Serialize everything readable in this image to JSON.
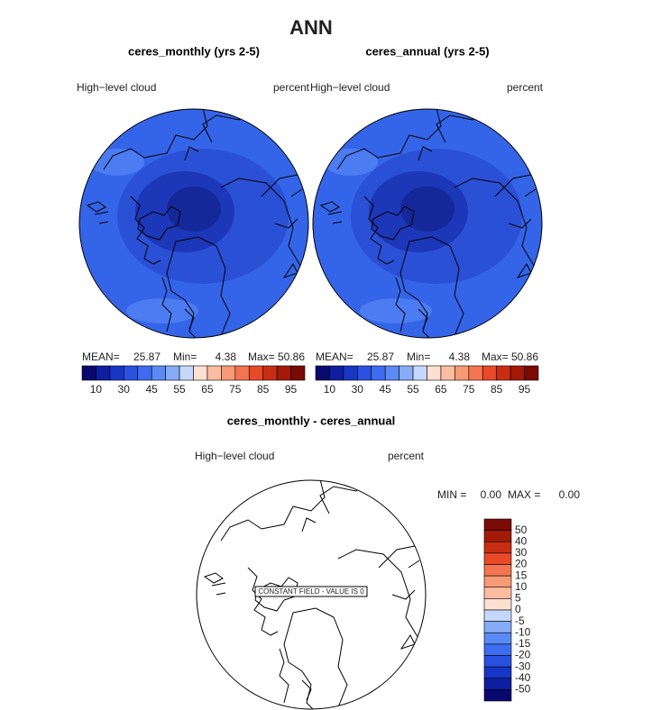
{
  "title": "ANN",
  "panels": [
    {
      "subtitle": "ceres_monthly (yrs 2-5)",
      "variable": "High−level cloud",
      "units": "percent",
      "stats": [
        {
          "label": "MEAN=",
          "value": "25.87"
        },
        {
          "label": "Min=",
          "value": "4.38"
        },
        {
          "label": "Max=",
          "value": "50.86"
        }
      ],
      "colorbar": [
        "10",
        "30",
        "45",
        "55",
        "65",
        "75",
        "85",
        "95"
      ]
    },
    {
      "subtitle": "ceres_annual (yrs 2-5)",
      "variable": "High−level cloud",
      "units": "percent",
      "stats": [
        {
          "label": "MEAN=",
          "value": "25.87"
        },
        {
          "label": "Min=",
          "value": "4.38"
        },
        {
          "label": "Max=",
          "value": "50.86"
        }
      ],
      "colorbar": [
        "10",
        "30",
        "45",
        "55",
        "65",
        "75",
        "85",
        "95"
      ]
    }
  ],
  "difference": {
    "subtitle": "ceres_monthly - ceres_annual",
    "variable": "High−level cloud",
    "units": "percent",
    "note": "CONSTANT FIELD - VALUE IS 0",
    "stats": [
      {
        "label": "MIN =",
        "value": "0.00"
      },
      {
        "label": "MAX =",
        "value": "0.00"
      }
    ],
    "colorbar": [
      "50",
      "40",
      "30",
      "20",
      "15",
      "10",
      "5",
      "0",
      "-5",
      "-10",
      "-15",
      "-20",
      "-30",
      "-40",
      "-50"
    ]
  }
}
